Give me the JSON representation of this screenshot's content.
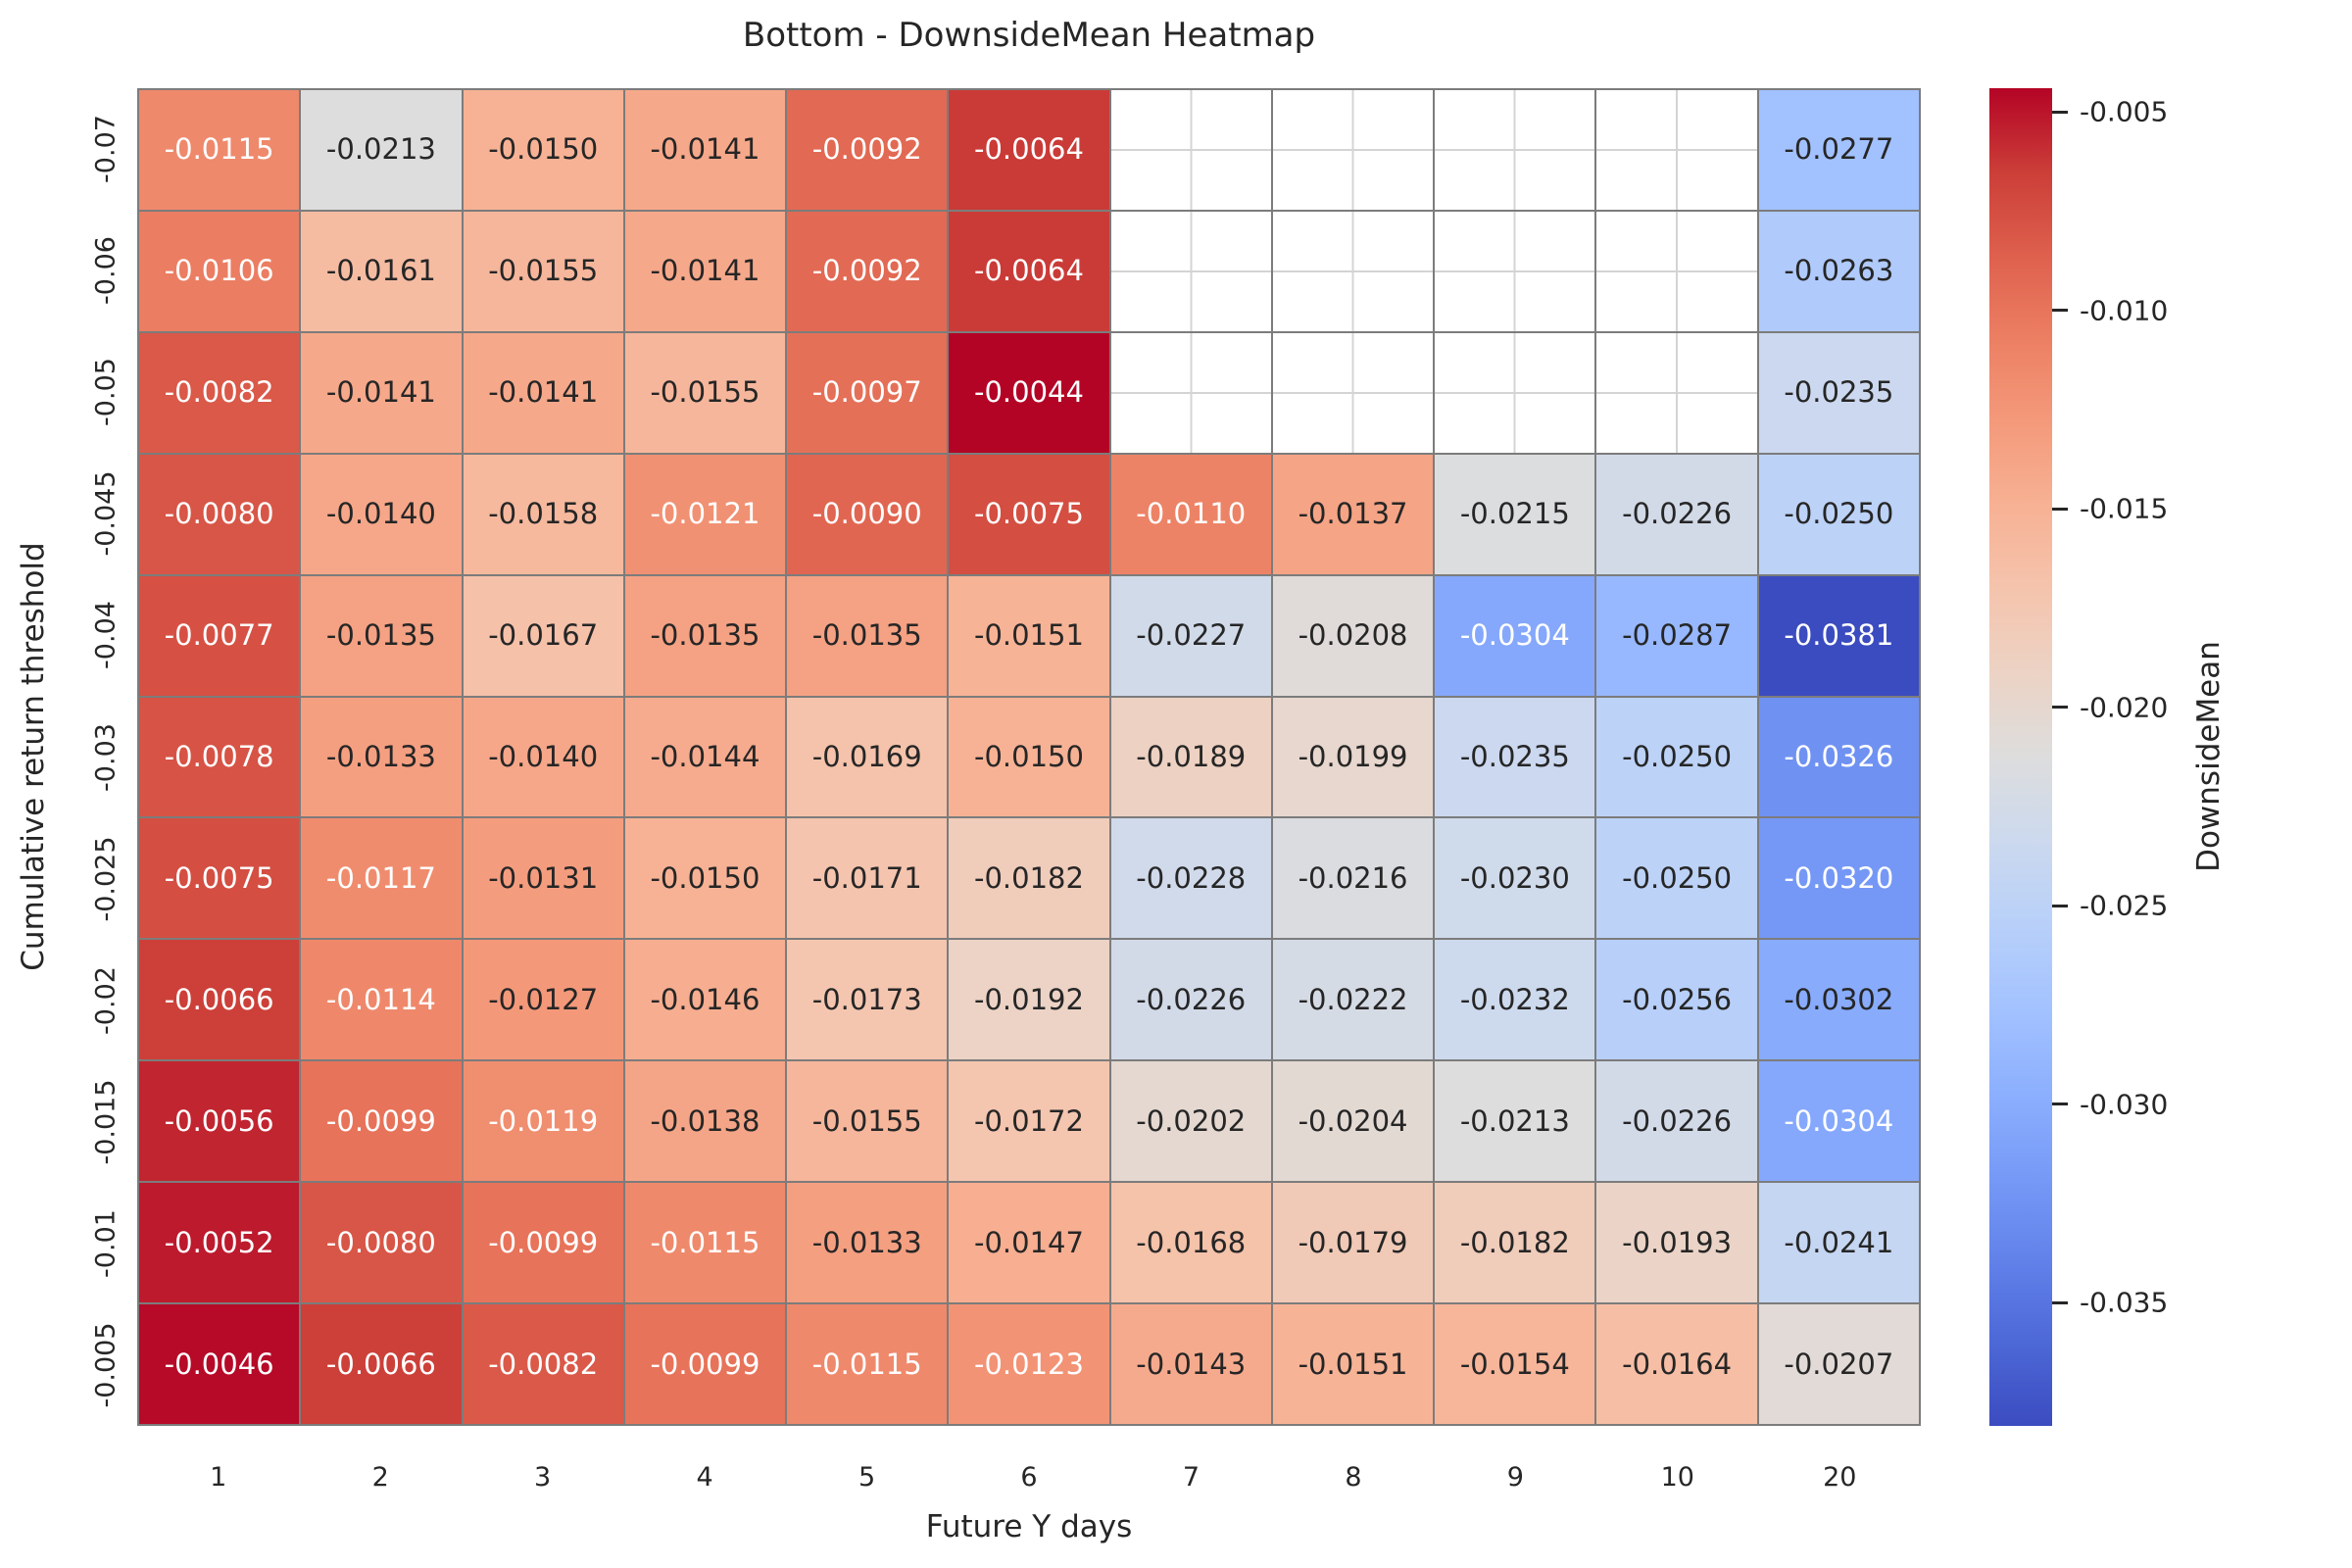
{
  "chart_data": {
    "type": "heatmap",
    "title": "Bottom - DownsideMean Heatmap",
    "xlabel": "Future Y days",
    "ylabel": "Cumulative return threshold",
    "x_categories": [
      "1",
      "2",
      "3",
      "4",
      "5",
      "6",
      "7",
      "8",
      "9",
      "10",
      "20"
    ],
    "y_categories": [
      "-0.07",
      "-0.06",
      "-0.05",
      "-0.045",
      "-0.04",
      "-0.03",
      "-0.025",
      "-0.02",
      "-0.015",
      "-0.01",
      "-0.005"
    ],
    "values": [
      [
        -0.0115,
        -0.0213,
        -0.015,
        -0.0141,
        -0.0092,
        -0.0064,
        null,
        null,
        null,
        null,
        -0.0277
      ],
      [
        -0.0106,
        -0.0161,
        -0.0155,
        -0.0141,
        -0.0092,
        -0.0064,
        null,
        null,
        null,
        null,
        -0.0263
      ],
      [
        -0.0082,
        -0.0141,
        -0.0141,
        -0.0155,
        -0.0097,
        -0.0044,
        null,
        null,
        null,
        null,
        -0.0235
      ],
      [
        -0.008,
        -0.014,
        -0.0158,
        -0.0121,
        -0.009,
        -0.0075,
        -0.011,
        -0.0137,
        -0.0215,
        -0.0226,
        -0.025
      ],
      [
        -0.0077,
        -0.0135,
        -0.0167,
        -0.0135,
        -0.0135,
        -0.0151,
        -0.0227,
        -0.0208,
        -0.0304,
        -0.0287,
        -0.0381
      ],
      [
        -0.0078,
        -0.0133,
        -0.014,
        -0.0144,
        -0.0169,
        -0.015,
        -0.0189,
        -0.0199,
        -0.0235,
        -0.025,
        -0.0326
      ],
      [
        -0.0075,
        -0.0117,
        -0.0131,
        -0.015,
        -0.0171,
        -0.0182,
        -0.0228,
        -0.0216,
        -0.023,
        -0.025,
        -0.032
      ],
      [
        -0.0066,
        -0.0114,
        -0.0127,
        -0.0146,
        -0.0173,
        -0.0192,
        -0.0226,
        -0.0222,
        -0.0232,
        -0.0256,
        -0.0302
      ],
      [
        -0.0056,
        -0.0099,
        -0.0119,
        -0.0138,
        -0.0155,
        -0.0172,
        -0.0202,
        -0.0204,
        -0.0213,
        -0.0226,
        -0.0304
      ],
      [
        -0.0052,
        -0.008,
        -0.0099,
        -0.0115,
        -0.0133,
        -0.0147,
        -0.0168,
        -0.0179,
        -0.0182,
        -0.0193,
        -0.0241
      ],
      [
        -0.0046,
        -0.0066,
        -0.0082,
        -0.0099,
        -0.0115,
        -0.0123,
        -0.0143,
        -0.0151,
        -0.0154,
        -0.0164,
        -0.0207
      ]
    ],
    "cmap": "coolwarm",
    "vmin": -0.0381,
    "vmax": -0.0044,
    "legend_position": "right-colorbar",
    "grid": "on-under-empty-cells",
    "colorbar": {
      "label": "DownsideMean",
      "tick_values": [
        -0.005,
        -0.01,
        -0.015,
        -0.02,
        -0.025,
        -0.03,
        -0.035
      ],
      "tick_labels": [
        "-0.005",
        "-0.010",
        "-0.015",
        "-0.020",
        "-0.025",
        "-0.030",
        "-0.035"
      ]
    },
    "colors": {
      "cell_border": "#7c7c7c",
      "axis_text": "#262626",
      "annot_dark": "#262626",
      "annot_light": "#ffffff",
      "empty_cell_grid": "#d4d4d4",
      "cmap_blue_end": "#3b4cc0",
      "cmap_mid": "#dddddd",
      "cmap_red_end": "#b40426"
    }
  }
}
